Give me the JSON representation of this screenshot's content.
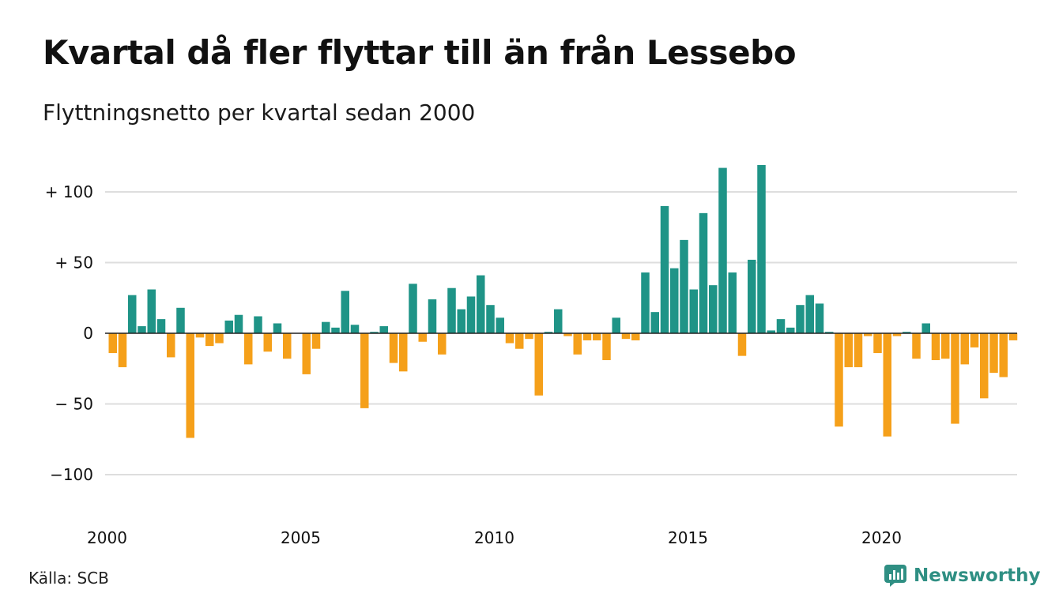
{
  "header": {
    "title": "Kvartal då fler flyttar till än från Lessebo",
    "subtitle": "Flyttningsnetto per kvartal sedan 2000"
  },
  "footer": {
    "source": "Källa: SCB",
    "brand": "Newsworthy"
  },
  "icons": {
    "brand_logo": "newsworthy-logo-icon"
  },
  "colors": {
    "positive": "#1f9487",
    "negative": "#f5a01a",
    "gridline": "#dedede",
    "zero_line": "#222222",
    "brand": "#2f8f83"
  },
  "chart_data": {
    "type": "bar",
    "title": "Kvartal då fler flyttar till än från Lessebo",
    "subtitle": "Flyttningsnetto per kvartal sedan 2000",
    "xlabel": "",
    "ylabel": "",
    "x_start": 2000,
    "quarters_per_year": 4,
    "x_ticks": [
      2000,
      2005,
      2010,
      2015,
      2020
    ],
    "y_ticks": [
      {
        "value": 100,
        "label": "+ 100"
      },
      {
        "value": 50,
        "label": "+  50"
      },
      {
        "value": 0,
        "label": "0"
      },
      {
        "value": -50,
        "label": "− 50"
      },
      {
        "value": -100,
        "label": "−100"
      }
    ],
    "ylim": [
      -125,
      125
    ],
    "grid": true,
    "values": [
      -14,
      -24,
      27,
      5,
      31,
      10,
      -17,
      18,
      -74,
      -3,
      -9,
      -7,
      9,
      13,
      -22,
      12,
      -13,
      7,
      -18,
      0,
      -29,
      -11,
      8,
      4,
      30,
      6,
      -53,
      1,
      5,
      -21,
      -27,
      35,
      -6,
      24,
      -15,
      32,
      17,
      26,
      41,
      20,
      11,
      -7,
      -11,
      -4,
      -44,
      1,
      17,
      -2,
      -15,
      -5,
      -5,
      -19,
      11,
      -4,
      -5,
      43,
      15,
      90,
      46,
      66,
      31,
      85,
      34,
      117,
      43,
      -16,
      52,
      119,
      2,
      10,
      4,
      20,
      27,
      21,
      1,
      -66,
      -24,
      -24,
      -2,
      -14,
      -73,
      -2,
      1,
      -18,
      7,
      -19,
      -18,
      -64,
      -22,
      -10,
      -46,
      -28,
      -31,
      -5
    ]
  }
}
